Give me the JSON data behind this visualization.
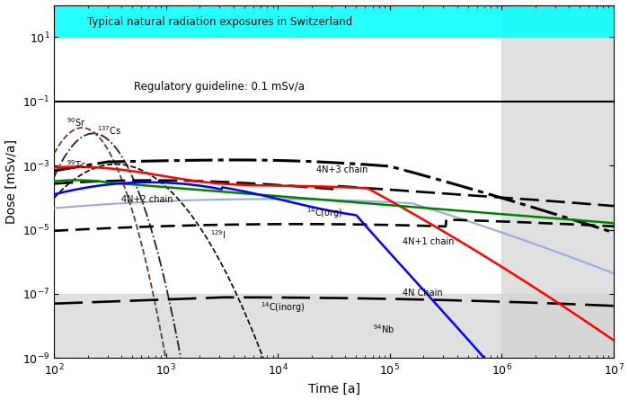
{
  "xlabel": "Time [a]",
  "ylabel": "Dose [mSv/a]",
  "xlim": [
    100,
    10000000.0
  ],
  "ylim": [
    1e-09,
    100
  ],
  "cyan_band_lo": 10,
  "cyan_band_hi": 100,
  "regulatory_value": 0.1,
  "gray_shade_x": 1000000.0,
  "gray_bottom_y": 1e-07,
  "natural_rad_label": "Typical natural radiation exposures in Switzerland",
  "regulatory_label": "Regulatory guideline: 0.1 mSv/a"
}
